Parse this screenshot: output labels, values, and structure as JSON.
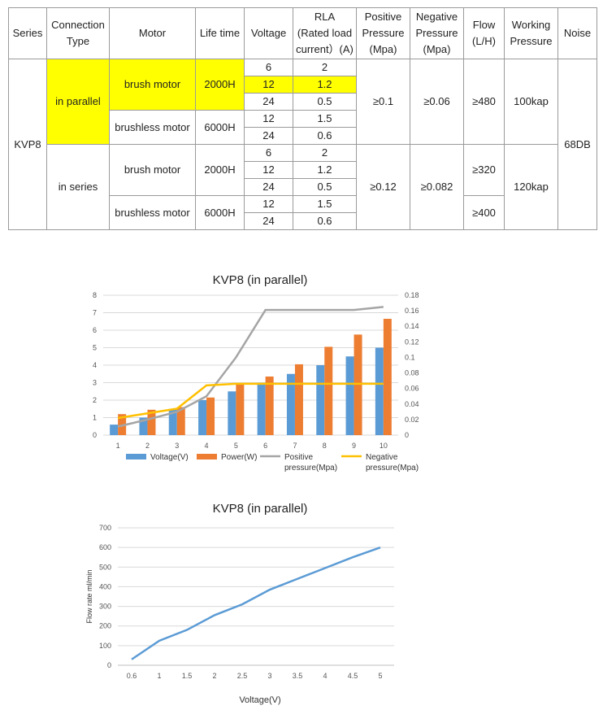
{
  "table": {
    "headers": {
      "series": "Series",
      "connection_type": "Connection\nType",
      "motor": "Motor",
      "life_time": "Life time",
      "voltage": "Voltage",
      "rla": "RLA\n(Rated load\ncurrent）(A)",
      "positive_pressure": "Positive\nPressure\n(Mpa)",
      "negative_pressure": "Negative\nPressure\n(Mpa)",
      "flow": "Flow\n(L/H)",
      "working_pressure": "Working\nPressure",
      "noise": "Noise"
    },
    "series": "KVP8",
    "noise": "68DB",
    "groups": [
      {
        "connection": "in parallel",
        "positive_pressure": "≥0.1",
        "negative_pressure": "≥0.06",
        "working_pressure": "100kap",
        "flow": [
          "≥480"
        ],
        "motors": [
          {
            "motor": "brush motor",
            "life": "2000H",
            "rows": [
              {
                "v": "6",
                "a": "2"
              },
              {
                "v": "12",
                "a": "1.2"
              },
              {
                "v": "24",
                "a": "0.5"
              }
            ]
          },
          {
            "motor": "brushless motor",
            "life": "6000H",
            "rows": [
              {
                "v": "12",
                "a": "1.5"
              },
              {
                "v": "24",
                "a": "0.6"
              }
            ]
          }
        ]
      },
      {
        "connection": "in series",
        "positive_pressure": "≥0.12",
        "negative_pressure": "≥0.082",
        "working_pressure": "120kap",
        "flow": [
          "≥320",
          "≥400"
        ],
        "motors": [
          {
            "motor": "brush motor",
            "life": "2000H",
            "rows": [
              {
                "v": "6",
                "a": "2"
              },
              {
                "v": "12",
                "a": "1.2"
              },
              {
                "v": "24",
                "a": "0.5"
              }
            ]
          },
          {
            "motor": "brushless motor",
            "life": "6000H",
            "rows": [
              {
                "v": "12",
                "a": "1.5"
              },
              {
                "v": "24",
                "a": "0.6"
              }
            ]
          }
        ]
      }
    ],
    "highlight_color": "#ffff00"
  },
  "chart_data": [
    {
      "type": "bar",
      "title": "KVP8 (in parallel)",
      "categories": [
        "1",
        "2",
        "3",
        "4",
        "5",
        "6",
        "7",
        "8",
        "9",
        "10"
      ],
      "ylim": [
        0,
        8
      ],
      "yticks": [
        "0",
        "1",
        "2",
        "3",
        "4",
        "5",
        "6",
        "7",
        "8"
      ],
      "y2lim": [
        0,
        0.18
      ],
      "y2ticks": [
        "0",
        "0.02",
        "0.04",
        "0.06",
        "0.08",
        "0.1",
        "0.12",
        "0.14",
        "0.16",
        "0.18"
      ],
      "grid": true,
      "legend_position": "bottom",
      "series": [
        {
          "name": "Voltage(V)",
          "kind": "bar",
          "axis": "left",
          "color": "#5b9bd5",
          "values": [
            0.6,
            1.0,
            1.5,
            2.0,
            2.5,
            3.0,
            3.5,
            4.0,
            4.5,
            5.0
          ]
        },
        {
          "name": "Power(W)",
          "kind": "bar",
          "axis": "left",
          "color": "#ed7d31",
          "values": [
            1.2,
            1.45,
            1.6,
            2.15,
            2.9,
            3.35,
            4.05,
            5.05,
            5.75,
            6.65
          ]
        },
        {
          "name": "Positive pressure(Mpa)",
          "kind": "line",
          "axis": "right",
          "color": "#a5a5a5",
          "values": [
            0.011,
            0.02,
            0.03,
            0.05,
            0.1,
            0.161,
            0.161,
            0.161,
            0.161,
            0.165
          ]
        },
        {
          "name": "Negative pressure(Mpa)",
          "kind": "line",
          "axis": "right",
          "color": "#ffc000",
          "values": [
            0.022,
            0.028,
            0.034,
            0.064,
            0.066,
            0.066,
            0.066,
            0.066,
            0.066,
            0.066
          ]
        }
      ],
      "legend_labels": [
        {
          "text": "Voltage(V)",
          "color": "#5b9bd5",
          "kind": "box"
        },
        {
          "text": "Power(W)",
          "color": "#ed7d31",
          "kind": "box"
        },
        {
          "text": "Positive\npressure(Mpa)",
          "color": "#a5a5a5",
          "kind": "line"
        },
        {
          "text": "Negative\npressure(Mpa)",
          "color": "#ffc000",
          "kind": "line"
        }
      ]
    },
    {
      "type": "line",
      "title": "KVP8 (in parallel)",
      "xlabel": "Voltage(V)",
      "ylabel": "Flow rate  ml/min",
      "x": [
        "0.6",
        "1",
        "1.5",
        "2",
        "2.5",
        "3",
        "3.5",
        "4",
        "4.5",
        "5"
      ],
      "ylim": [
        0,
        700
      ],
      "yticks": [
        "0",
        "100",
        "200",
        "300",
        "400",
        "500",
        "600",
        "700"
      ],
      "grid": true,
      "series": [
        {
          "name": "",
          "color": "#5b9bd5",
          "values": [
            30,
            125,
            180,
            255,
            310,
            385,
            440,
            495,
            550,
            600
          ]
        }
      ]
    }
  ]
}
